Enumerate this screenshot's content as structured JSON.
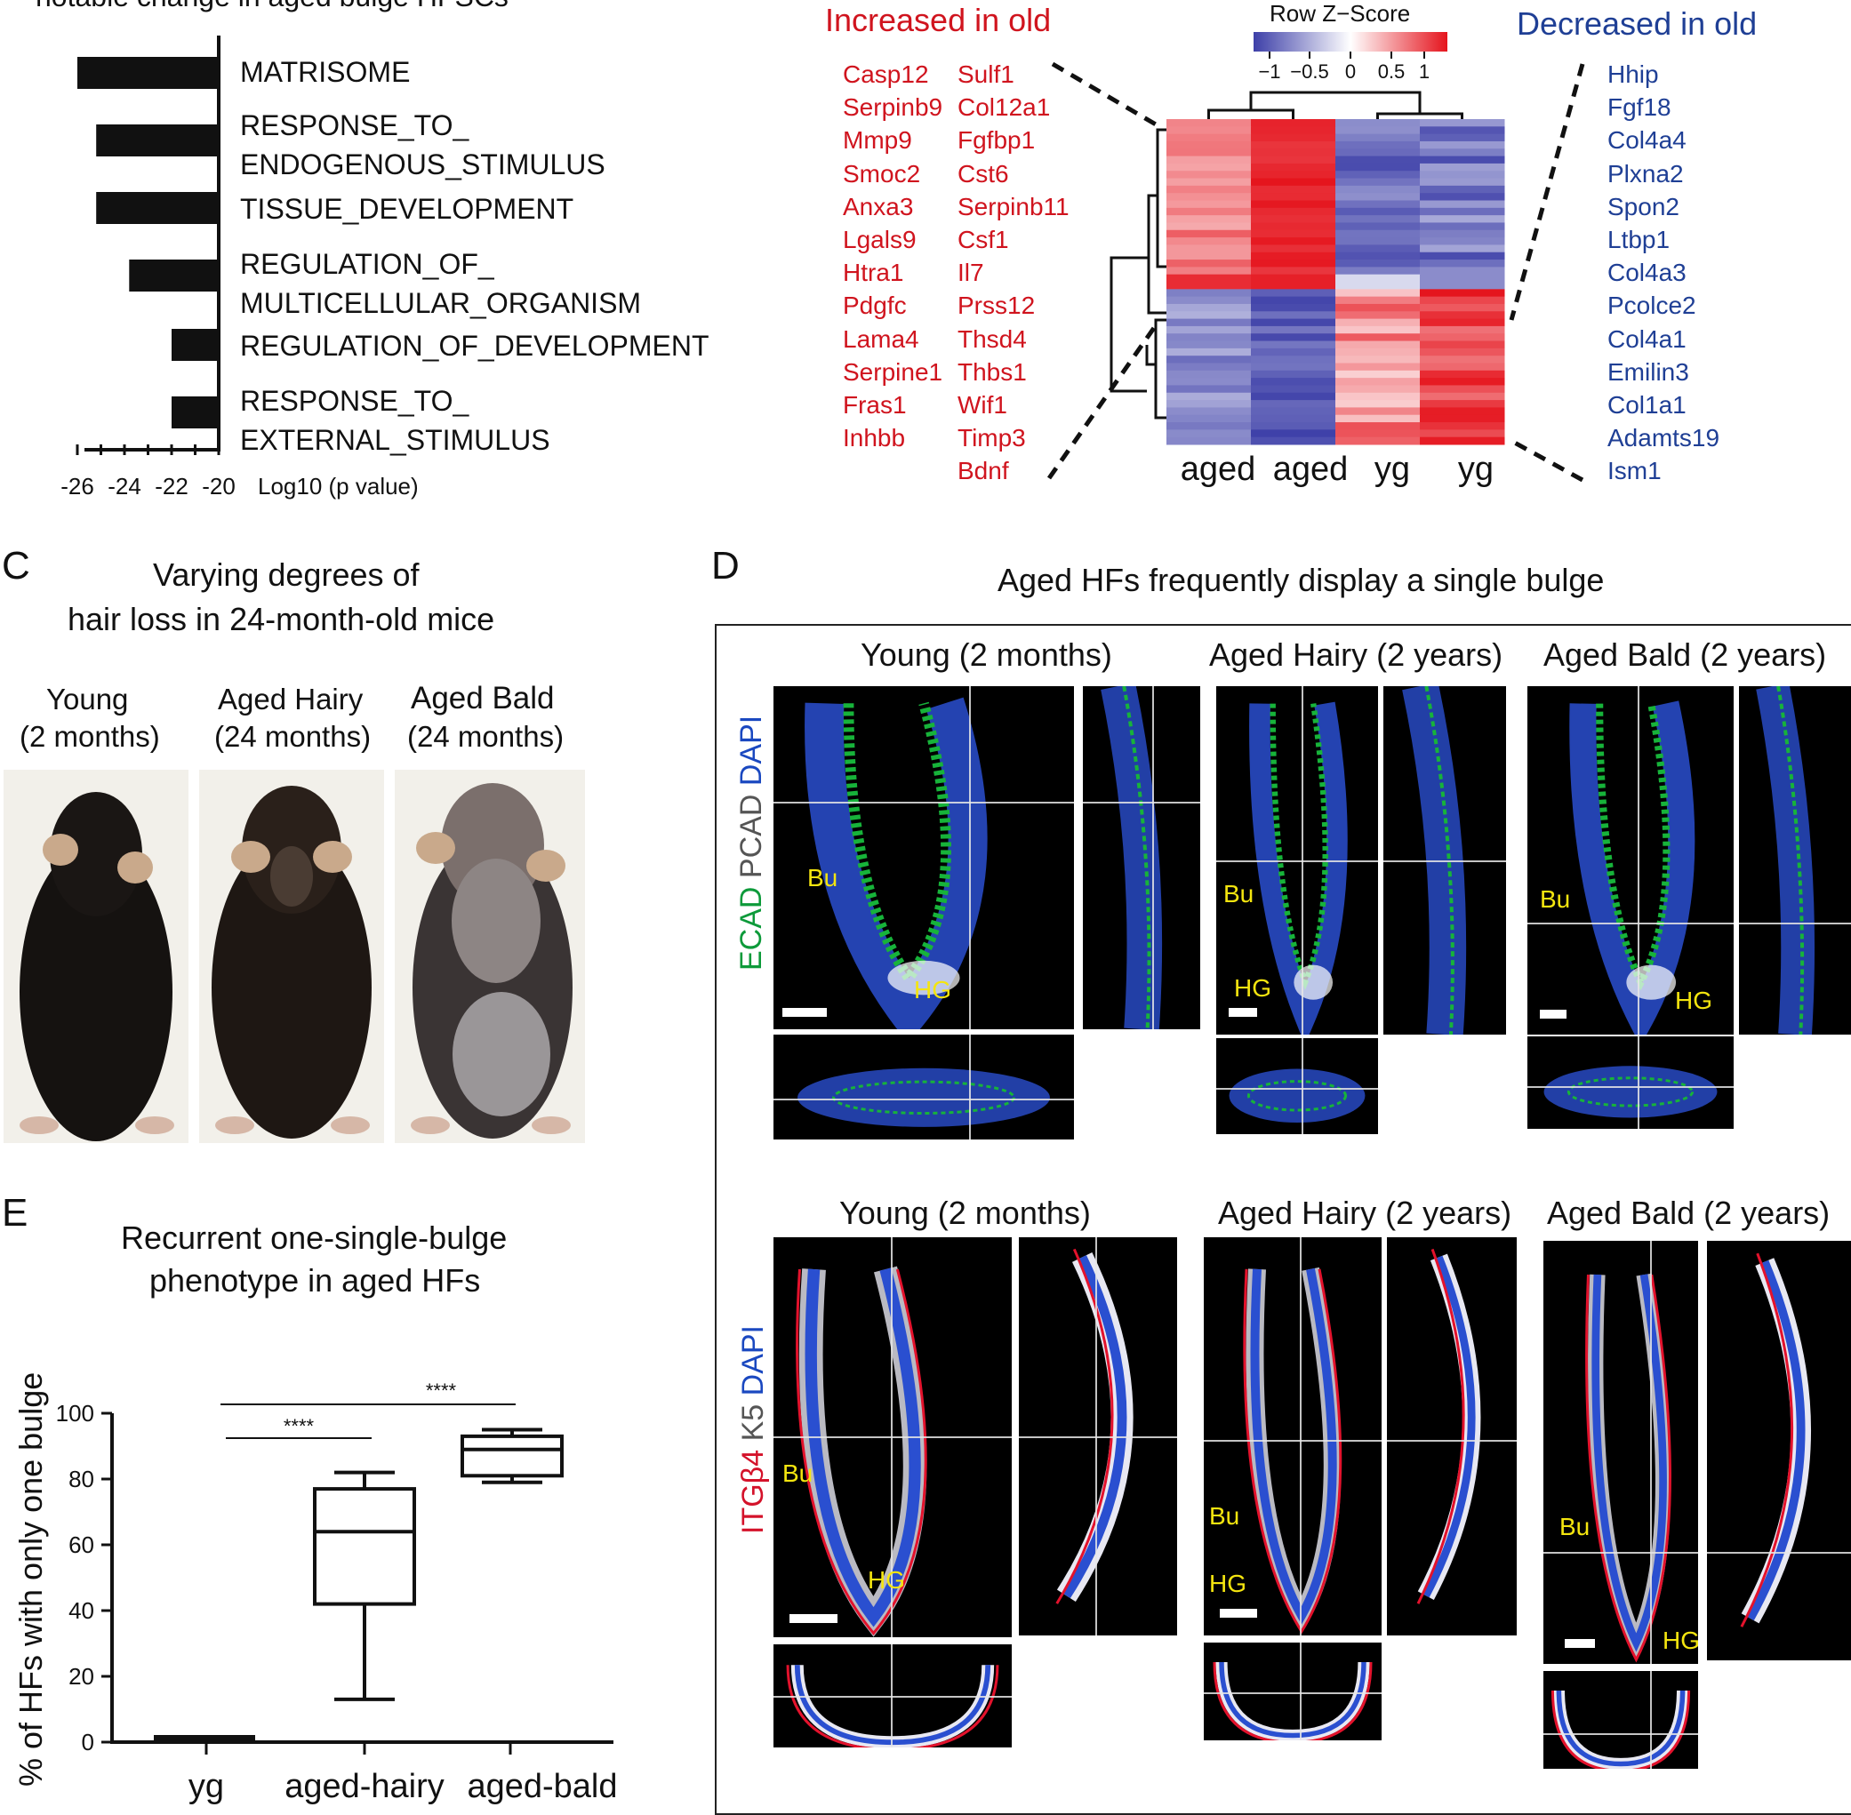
{
  "panelA": {
    "title": "notable change in aged bulge HFSCs",
    "terms": [
      {
        "lines": [
          "MATRISOME"
        ],
        "log10p": -26
      },
      {
        "lines": [
          "RESPONSE_TO_",
          "ENDOGENOUS_STIMULUS"
        ],
        "log10p": -25.2
      },
      {
        "lines": [
          "TISSUE_DEVELOPMENT"
        ],
        "log10p": -25.2
      },
      {
        "lines": [
          "REGULATION_OF_",
          "MULTICELLULAR_ORGANISM"
        ],
        "log10p": -23.8
      },
      {
        "lines": [
          "REGULATION_OF_DEVELOPMENT"
        ],
        "log10p": -22.0
      },
      {
        "lines": [
          "RESPONSE_TO_",
          "EXTERNAL_STIMULUS"
        ],
        "log10p": -22.0
      }
    ],
    "ticks": [
      "-26",
      "-24",
      "-22",
      "-20"
    ],
    "xlabel": "Log10 (p value)"
  },
  "panelB": {
    "increased_title": "Increased in old",
    "decreased_title": "Decreased in old",
    "increased_col1": [
      "Casp12",
      "Serpinb9",
      "Mmp9",
      "Smoc2",
      "Anxa3",
      "Lgals9",
      "Htra1",
      "Pdgfc",
      "Lama4",
      "Serpine1",
      "Fras1",
      "Inhbb"
    ],
    "increased_col2": [
      "Sulf1",
      "Col12a1",
      "Fgfbp1",
      "Cst6",
      "Serpinb11",
      "Csf1",
      "Il7",
      "Prss12",
      "Thsd4",
      "Thbs1",
      "Wif1",
      "Timp3",
      "Bdnf"
    ],
    "decreased": [
      "Hhip",
      "Fgf18",
      "Col4a4",
      "Plxna2",
      "Spon2",
      "Ltbp1",
      "Col4a3",
      "Pcolce2",
      "Col4a1",
      "Emilin3",
      "Col1a1",
      "Adamts19",
      "Ism1"
    ],
    "zscore_title": "Row Z−Score",
    "zscore_ticks": [
      "−1",
      "−0.5",
      "0",
      "0.5",
      "1"
    ],
    "columns": [
      "aged",
      "aged",
      "yg",
      "yg"
    ],
    "colors": {
      "high": "#e5141d",
      "low": "#3d3fa8",
      "mid": "#ffffff"
    }
  },
  "panelC": {
    "letter": "C",
    "title1": "Varying degrees of",
    "title2": "hair loss in 24-month-old mice",
    "groups": [
      {
        "name": "Young",
        "age": "(2 months)"
      },
      {
        "name": "Aged Hairy",
        "age": "(24 months)"
      },
      {
        "name": "Aged Bald",
        "age": "(24 months)"
      }
    ]
  },
  "panelD": {
    "letter": "D",
    "title": "Aged HFs frequently display a single bulge",
    "top_groups": [
      "Young (2 months)",
      "Aged Hairy (2 years)",
      "Aged Bald (2 years)"
    ],
    "bottom_groups": [
      "Young (2 months)",
      "Aged Hairy (2 years)",
      "Aged Bald (2 years)"
    ],
    "top_stain": {
      "a": "ECAD",
      "b": "PCAD",
      "c": "DAPI"
    },
    "bottom_stain": {
      "a": "ITGβ4",
      "b": "K5",
      "c": "DAPI"
    },
    "bu": "Bu",
    "hg": "HG"
  },
  "panelE": {
    "letter": "E",
    "title1": "Recurrent one-single-bulge",
    "title2": "phenotype in aged HFs",
    "ylabel": "% of HFs with only one bulge",
    "sig1": "****",
    "sig2": "****"
  },
  "chart_data": {
    "type": "box",
    "categories": [
      "yg",
      "aged-hairy",
      "aged-bald"
    ],
    "ylim": [
      0,
      100
    ],
    "yticks": [
      "0",
      "20",
      "40",
      "60",
      "80",
      "100"
    ],
    "ylabel": "% of HFs with only one bulge",
    "boxes": [
      {
        "name": "yg",
        "min": 0,
        "q1": 0,
        "median": 0,
        "q3": 0,
        "max": 0
      },
      {
        "name": "aged-hairy",
        "min": 13,
        "q1": 42,
        "median": 64,
        "q3": 77,
        "max": 82
      },
      {
        "name": "aged-bald",
        "min": 79,
        "q1": 81,
        "median": 89,
        "q3": 93,
        "max": 95
      }
    ],
    "significance": [
      {
        "from": "yg",
        "to": "aged-hairy",
        "label": "****"
      },
      {
        "from": "yg",
        "to": "aged-bald",
        "label": "****"
      }
    ]
  }
}
